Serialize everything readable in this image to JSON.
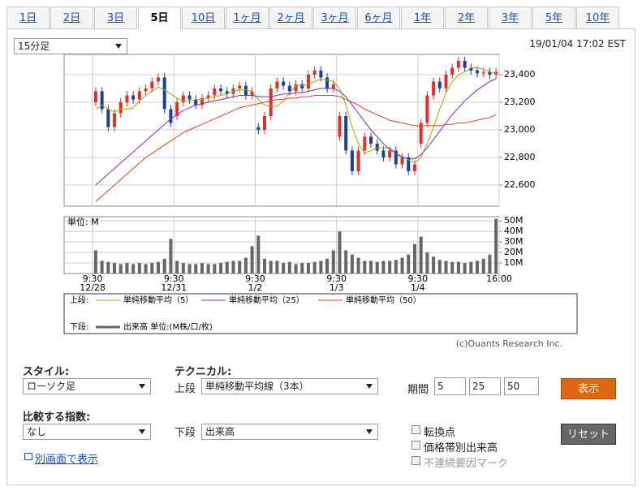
{
  "tabs": [
    "1日",
    "2日",
    "3日",
    "5日",
    "10日",
    "1ヶ月",
    "2ヶ月",
    "3ヶ月",
    "6ヶ月",
    "1年",
    "2年",
    "3年",
    "5年",
    "10年"
  ],
  "active_tab": 3,
  "interval": "15分足",
  "timestamp": "19/01/04 17:02 EST",
  "chart_data": [
    {
      "type": "candlestick",
      "up_color": "#e0302c",
      "down_color": "#1d3f9c",
      "open": [
        23200,
        23280,
        23150,
        23020,
        23120,
        23200,
        23250,
        23220,
        23280,
        23300,
        23350,
        23380,
        23150,
        23100,
        23200,
        23250,
        23220,
        23180,
        23230,
        23250,
        23300,
        23280,
        23260,
        23300,
        23320,
        23250,
        23020,
        23000,
        23100,
        23300,
        23350,
        23320,
        23280,
        23330,
        23300,
        23400,
        23430,
        23380,
        23300,
        22950,
        23100,
        22850,
        22700,
        22850,
        22950,
        22900,
        22850,
        22800,
        22850,
        22750,
        22800,
        22700,
        22900,
        23050,
        23250,
        23350,
        23300,
        23400,
        23450,
        23500,
        23450,
        23430,
        23410,
        23420,
        23400
      ],
      "high": [
        23310,
        23310,
        23180,
        23150,
        23230,
        23280,
        23280,
        23310,
        23330,
        23380,
        23410,
        23410,
        23180,
        23230,
        23280,
        23280,
        23250,
        23260,
        23280,
        23330,
        23330,
        23310,
        23330,
        23350,
        23350,
        23310,
        23050,
        23130,
        23330,
        23380,
        23380,
        23350,
        23360,
        23360,
        23430,
        23460,
        23460,
        23410,
        23360,
        23130,
        23130,
        22880,
        22880,
        22980,
        22980,
        22930,
        22880,
        22880,
        22880,
        22830,
        22830,
        22780,
        23080,
        23280,
        23380,
        23380,
        23430,
        23480,
        23530,
        23530,
        23480,
        23460,
        23450,
        23450,
        23450
      ],
      "low": [
        23170,
        23120,
        22990,
        22990,
        23090,
        23170,
        23190,
        23190,
        23250,
        23270,
        23320,
        23120,
        23020,
        23070,
        23170,
        23190,
        23150,
        23150,
        23200,
        23220,
        23250,
        23230,
        23230,
        23270,
        23220,
        23220,
        22970,
        22970,
        23070,
        23270,
        23290,
        23250,
        23250,
        23270,
        23270,
        23370,
        23350,
        23270,
        23270,
        22920,
        22820,
        22670,
        22670,
        22820,
        22870,
        22820,
        22770,
        22770,
        22720,
        22720,
        22670,
        22670,
        22870,
        23020,
        23220,
        23270,
        23270,
        23370,
        23420,
        23420,
        23400,
        23380,
        23380,
        23370,
        23370
      ],
      "close": [
        23280,
        23150,
        23020,
        23120,
        23200,
        23250,
        23220,
        23280,
        23300,
        23350,
        23380,
        23150,
        23050,
        23200,
        23250,
        23220,
        23180,
        23230,
        23250,
        23300,
        23280,
        23260,
        23300,
        23320,
        23250,
        23280,
        23000,
        23100,
        23300,
        23350,
        23320,
        23280,
        23330,
        23300,
        23400,
        23430,
        23380,
        23300,
        23330,
        23100,
        22850,
        22700,
        22850,
        22950,
        22900,
        22850,
        22800,
        22850,
        22750,
        22800,
        22700,
        22750,
        23050,
        23250,
        23350,
        23300,
        23400,
        23450,
        23500,
        23450,
        23430,
        23410,
        23420,
        23400,
        23420
      ],
      "series": [
        {
          "name": "単純移動平均（5）",
          "color": "#8cb800",
          "values": [
            23150,
            23180,
            23150,
            23130,
            23150,
            23150,
            23160,
            23210,
            23250,
            23280,
            23310,
            23290,
            23260,
            23230,
            23210,
            23210,
            23220,
            23220,
            23230,
            23240,
            23250,
            23260,
            23280,
            23290,
            23290,
            23280,
            23220,
            23180,
            23170,
            23170,
            23210,
            23270,
            23320,
            23320,
            23330,
            23350,
            23370,
            23360,
            23350,
            23300,
            23180,
            23020,
            22900,
            22830,
            22850,
            22870,
            22870,
            22870,
            22830,
            22810,
            22780,
            22760,
            22800,
            22900,
            23020,
            23150,
            23270,
            23350,
            23400,
            23420,
            23450,
            23450,
            23440,
            23420,
            23410
          ]
        },
        {
          "name": "単純移動平均（25）",
          "color": "#7a2fc0",
          "values": [
            22600,
            22640,
            22680,
            22720,
            22760,
            22800,
            22840,
            22880,
            22920,
            22960,
            23000,
            23040,
            23080,
            23110,
            23140,
            23160,
            23180,
            23190,
            23200,
            23210,
            23220,
            23230,
            23240,
            23250,
            23250,
            23250,
            23240,
            23240,
            23240,
            23250,
            23260,
            23260,
            23270,
            23270,
            23280,
            23290,
            23300,
            23300,
            23300,
            23280,
            23240,
            23180,
            23120,
            23060,
            23000,
            22950,
            22900,
            22860,
            22830,
            22800,
            22790,
            22790,
            22820,
            22870,
            22930,
            22990,
            23050,
            23110,
            23160,
            23210,
            23250,
            23290,
            23320,
            23350,
            23370
          ]
        },
        {
          "name": "単純移動平均（50）",
          "color": "#e2401a",
          "values": [
            22480,
            22520,
            22560,
            22600,
            22640,
            22680,
            22720,
            22760,
            22800,
            22830,
            22860,
            22890,
            22920,
            22950,
            22980,
            23000,
            23020,
            23040,
            23060,
            23080,
            23100,
            23120,
            23140,
            23160,
            23170,
            23180,
            23190,
            23200,
            23210,
            23220,
            23220,
            23230,
            23230,
            23240,
            23240,
            23250,
            23250,
            23250,
            23250,
            23240,
            23220,
            23200,
            23180,
            23150,
            23130,
            23110,
            23090,
            23070,
            23060,
            23050,
            23040,
            23030,
            23030,
            23030,
            23030,
            23030,
            23040,
            23040,
            23050,
            23050,
            23060,
            23070,
            23080,
            23090,
            23110
          ]
        }
      ],
      "xlim": [
        -4.55,
        65
      ],
      "xticks": [
        0,
        13,
        26,
        39,
        52,
        65
      ],
      "ylim": [
        22447,
        23547
      ],
      "yticks": [
        {
          "value": 22600,
          "label": "22,600"
        },
        {
          "value": 22800,
          "label": "22,800"
        },
        {
          "value": 23000,
          "label": "23,000"
        },
        {
          "value": 23200,
          "label": "23,200"
        },
        {
          "value": 23400,
          "label": "23,400"
        }
      ],
      "grid": true
    },
    {
      "type": "bar",
      "unit_label": "単位: M",
      "color": "#666666",
      "values": [
        22,
        12,
        11,
        10,
        9,
        10,
        9,
        10,
        9,
        10,
        11,
        14,
        33,
        12,
        10,
        9,
        9,
        10,
        9,
        9,
        10,
        11,
        12,
        12,
        15,
        26,
        36,
        14,
        12,
        12,
        10,
        11,
        9,
        10,
        10,
        11,
        12,
        14,
        22,
        40,
        22,
        18,
        15,
        12,
        12,
        11,
        12,
        12,
        13,
        15,
        18,
        28,
        35,
        20,
        16,
        13,
        12,
        11,
        11,
        10,
        11,
        12,
        14,
        18,
        52
      ],
      "xlim": [
        -4.55,
        65
      ],
      "xticks": [
        {
          "value": 0,
          "label": "9:30"
        },
        {
          "value": 13,
          "label": "9:30"
        },
        {
          "value": 26,
          "label": "9:30"
        },
        {
          "value": 39,
          "label": "9:30"
        },
        {
          "value": 52,
          "label": "9:30"
        },
        {
          "value": 65,
          "label": "16:00"
        }
      ],
      "xtick_dates": [
        "12/28",
        "12/31",
        "1/2",
        "1/3",
        "1/4"
      ],
      "ylim": [
        0,
        54
      ],
      "yticks": [
        {
          "value": 10,
          "label": "10M"
        },
        {
          "value": 20,
          "label": "20M"
        },
        {
          "value": 30,
          "label": "30M"
        },
        {
          "value": 40,
          "label": "40M"
        },
        {
          "value": 50,
          "label": "50M"
        }
      ],
      "grid": true
    }
  ],
  "legend": {
    "upper_label": "上段:",
    "lower_label": "下段:",
    "volume_label": "出来高 単位:(M株/口/枚)"
  },
  "copyright": "(c)Ouants Research Inc.",
  "form": {
    "style_label": "スタイル:",
    "style_value": "ローソク足",
    "technical_label": "テクニカル:",
    "upper_label": "上段",
    "upper_value": "単純移動平均線（3本）",
    "period_label": "期間",
    "periods": [
      5,
      25,
      50
    ],
    "show_button": "表示",
    "compare_label": "比較する指数:",
    "compare_value": "なし",
    "lower_label": "下段",
    "lower_value": "出来高",
    "checkboxes": [
      {
        "label": "転換点",
        "enabled": true
      },
      {
        "label": "価格帯別出来高",
        "enabled": true
      },
      {
        "label": "不連続要因マーク",
        "enabled": false
      }
    ],
    "reset_button": "リセット",
    "popup_link": "別画面で表示"
  }
}
